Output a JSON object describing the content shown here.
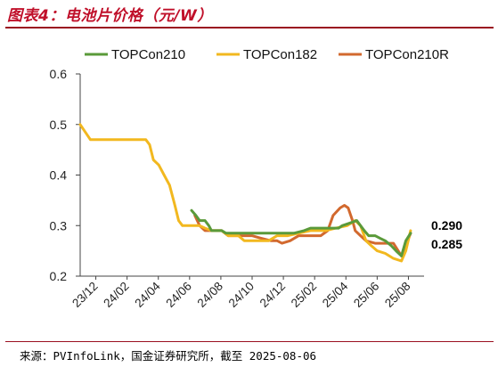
{
  "title": "图表4：电池片价格（元/W）",
  "source": "来源：PVInfoLink，国金证券研究所，截至 2025-08-06",
  "chart_data": {
    "type": "line",
    "title": "图表4：电池片价格（元/W）",
    "xlabel": "",
    "ylabel": "",
    "ylim": [
      0.2,
      0.6
    ],
    "yticks": [
      "0.2",
      "0.3",
      "0.4",
      "0.5",
      "0.6"
    ],
    "xticks": [
      "23/12",
      "24/02",
      "24/04",
      "24/06",
      "24/08",
      "24/10",
      "24/12",
      "25/02",
      "25/04",
      "25/06",
      "25/08"
    ],
    "xrange": [
      "2023-12-01",
      "2025-08-31"
    ],
    "grid": false,
    "legend_position": "top",
    "end_labels": [
      "0.290",
      "0.285"
    ],
    "series": [
      {
        "name": "TOPCon210",
        "color": "#5a9a3a",
        "points": [
          [
            "2024-06-25",
            0.33
          ],
          [
            "2024-07-03",
            0.32
          ],
          [
            "2024-07-10",
            0.31
          ],
          [
            "2024-07-20",
            0.31
          ],
          [
            "2024-07-27",
            0.3
          ],
          [
            "2024-08-01",
            0.29
          ],
          [
            "2024-08-20",
            0.29
          ],
          [
            "2024-08-28",
            0.285
          ],
          [
            "2024-10-01",
            0.285
          ],
          [
            "2024-11-01",
            0.285
          ],
          [
            "2024-12-01",
            0.285
          ],
          [
            "2025-01-01",
            0.285
          ],
          [
            "2025-01-20",
            0.29
          ],
          [
            "2025-02-01",
            0.295
          ],
          [
            "2025-03-01",
            0.295
          ],
          [
            "2025-03-25",
            0.295
          ],
          [
            "2025-04-01",
            0.3
          ],
          [
            "2025-04-15",
            0.305
          ],
          [
            "2025-04-28",
            0.31
          ],
          [
            "2025-05-05",
            0.3
          ],
          [
            "2025-05-12",
            0.29
          ],
          [
            "2025-05-20",
            0.28
          ],
          [
            "2025-06-01",
            0.28
          ],
          [
            "2025-06-10",
            0.275
          ],
          [
            "2025-06-20",
            0.27
          ],
          [
            "2025-07-01",
            0.26
          ],
          [
            "2025-07-10",
            0.25
          ],
          [
            "2025-07-20",
            0.24
          ],
          [
            "2025-07-28",
            0.27
          ],
          [
            "2025-08-06",
            0.285
          ]
        ]
      },
      {
        "name": "TOPCon182",
        "color": "#f2b81f",
        "points": [
          [
            "2023-12-01",
            0.5
          ],
          [
            "2023-12-20",
            0.47
          ],
          [
            "2024-01-15",
            0.47
          ],
          [
            "2024-02-15",
            0.47
          ],
          [
            "2024-03-15",
            0.47
          ],
          [
            "2024-04-01",
            0.47
          ],
          [
            "2024-04-08",
            0.46
          ],
          [
            "2024-04-15",
            0.43
          ],
          [
            "2024-04-25",
            0.42
          ],
          [
            "2024-05-05",
            0.4
          ],
          [
            "2024-05-15",
            0.38
          ],
          [
            "2024-05-25",
            0.34
          ],
          [
            "2024-06-01",
            0.31
          ],
          [
            "2024-06-08",
            0.3
          ],
          [
            "2024-06-20",
            0.3
          ],
          [
            "2024-07-01",
            0.3
          ],
          [
            "2024-07-10",
            0.3
          ],
          [
            "2024-07-20",
            0.295
          ],
          [
            "2024-08-01",
            0.29
          ],
          [
            "2024-08-20",
            0.29
          ],
          [
            "2024-09-01",
            0.28
          ],
          [
            "2024-09-20",
            0.28
          ],
          [
            "2024-10-01",
            0.27
          ],
          [
            "2024-11-01",
            0.27
          ],
          [
            "2024-11-15",
            0.27
          ],
          [
            "2024-12-01",
            0.28
          ],
          [
            "2024-12-20",
            0.28
          ],
          [
            "2025-01-10",
            0.285
          ],
          [
            "2025-02-01",
            0.29
          ],
          [
            "2025-03-01",
            0.29
          ],
          [
            "2025-03-20",
            0.295
          ],
          [
            "2025-04-10",
            0.3
          ],
          [
            "2025-04-25",
            0.31
          ],
          [
            "2025-05-05",
            0.3
          ],
          [
            "2025-05-15",
            0.27
          ],
          [
            "2025-05-25",
            0.26
          ],
          [
            "2025-06-05",
            0.25
          ],
          [
            "2025-06-20",
            0.245
          ],
          [
            "2025-07-05",
            0.235
          ],
          [
            "2025-07-20",
            0.23
          ],
          [
            "2025-07-28",
            0.25
          ],
          [
            "2025-08-06",
            0.29
          ]
        ]
      },
      {
        "name": "TOPCon210R",
        "color": "#d2692e",
        "points": [
          [
            "2024-07-01",
            0.32
          ],
          [
            "2024-07-10",
            0.3
          ],
          [
            "2024-07-20",
            0.29
          ],
          [
            "2024-08-01",
            0.29
          ],
          [
            "2024-08-20",
            0.29
          ],
          [
            "2024-09-01",
            0.28
          ],
          [
            "2024-10-01",
            0.28
          ],
          [
            "2024-10-15",
            0.28
          ],
          [
            "2024-11-01",
            0.275
          ],
          [
            "2024-11-20",
            0.27
          ],
          [
            "2024-12-01",
            0.27
          ],
          [
            "2024-12-10",
            0.265
          ],
          [
            "2024-12-25",
            0.27
          ],
          [
            "2025-01-10",
            0.28
          ],
          [
            "2025-02-01",
            0.28
          ],
          [
            "2025-02-20",
            0.28
          ],
          [
            "2025-03-05",
            0.29
          ],
          [
            "2025-03-15",
            0.32
          ],
          [
            "2025-03-28",
            0.335
          ],
          [
            "2025-04-05",
            0.34
          ],
          [
            "2025-04-12",
            0.335
          ],
          [
            "2025-04-20",
            0.31
          ],
          [
            "2025-04-25",
            0.29
          ],
          [
            "2025-05-05",
            0.28
          ],
          [
            "2025-05-15",
            0.27
          ],
          [
            "2025-06-01",
            0.265
          ],
          [
            "2025-06-20",
            0.265
          ],
          [
            "2025-07-05",
            0.265
          ],
          [
            "2025-07-20",
            0.24
          ],
          [
            "2025-07-28",
            0.26
          ],
          [
            "2025-08-06",
            0.285
          ]
        ]
      }
    ]
  }
}
